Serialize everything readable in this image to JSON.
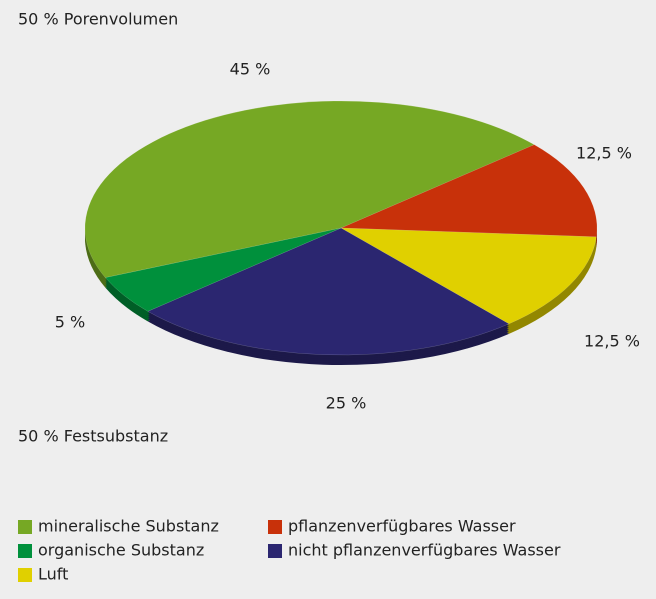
{
  "chart_data": {
    "type": "pie",
    "categories": [
      "mineralische Substanz",
      "pflanzenverfügbares Wasser",
      "Luft",
      "nicht pflanzenverfügbares Wasser",
      "organische Substanz"
    ],
    "values": [
      45,
      12.5,
      12.5,
      25,
      5
    ],
    "value_labels": [
      "45 %",
      "12,5 %",
      "12,5 %",
      "25 %",
      "5 %"
    ],
    "colors": [
      "#76a824",
      "#c8310a",
      "#e0d000",
      "#2b2670",
      "#00903c"
    ],
    "annotations": [
      "50 % Porenvolumen",
      "50 % Festsubstanz"
    ]
  }
}
